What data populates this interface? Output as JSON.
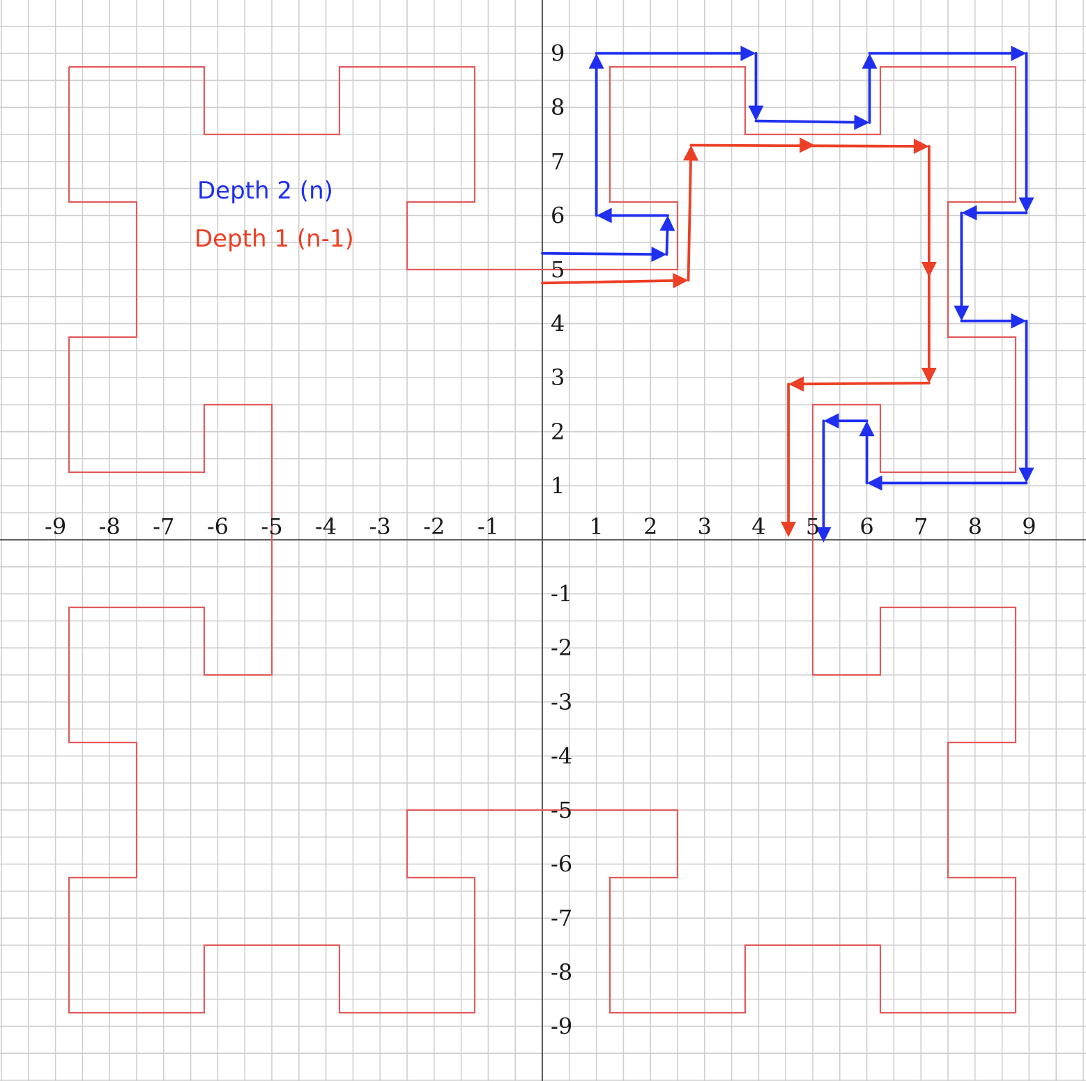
{
  "chart_data": {
    "type": "line",
    "xlim": [
      -10,
      10
    ],
    "ylim": [
      -10,
      10
    ],
    "grid": true,
    "grid_step": 0.5,
    "x_ticks": [
      -9,
      -8,
      -7,
      -6,
      -5,
      -4,
      -3,
      -2,
      -1,
      1,
      2,
      3,
      4,
      5,
      6,
      7,
      8,
      9
    ],
    "y_ticks": [
      9,
      8,
      7,
      6,
      5,
      4,
      3,
      2,
      1,
      -1,
      -2,
      -3,
      -4,
      -5,
      -6,
      -7,
      -8,
      -9
    ],
    "legend": [
      {
        "label": "Depth 2 (n)",
        "color": "#1f2ff0"
      },
      {
        "label": "Depth 1 (n-1)",
        "color": "#ec3f25"
      }
    ],
    "series": [
      {
        "role": "outline",
        "color": "#e15a5a",
        "points": [
          [
            -8.75,
            8.75
          ],
          [
            -6.25,
            8.75
          ],
          [
            -6.25,
            7.5
          ],
          [
            -3.75,
            7.5
          ],
          [
            -3.75,
            8.75
          ],
          [
            -1.25,
            8.75
          ],
          [
            -1.25,
            6.25
          ],
          [
            -2.5,
            6.25
          ],
          [
            -2.5,
            5
          ],
          [
            2.5,
            5
          ],
          [
            2.5,
            6.25
          ],
          [
            1.25,
            6.25
          ],
          [
            1.25,
            8.75
          ],
          [
            3.75,
            8.75
          ],
          [
            3.75,
            7.5
          ],
          [
            6.25,
            7.5
          ],
          [
            6.25,
            8.75
          ],
          [
            8.75,
            8.75
          ],
          [
            8.75,
            6.25
          ],
          [
            7.5,
            6.25
          ],
          [
            7.5,
            3.75
          ],
          [
            8.75,
            3.75
          ],
          [
            8.75,
            1.25
          ],
          [
            6.25,
            1.25
          ],
          [
            6.25,
            2.5
          ],
          [
            5,
            2.5
          ],
          [
            5,
            -2.5
          ],
          [
            6.25,
            -2.5
          ],
          [
            6.25,
            -1.25
          ],
          [
            8.75,
            -1.25
          ],
          [
            8.75,
            -3.75
          ],
          [
            7.5,
            -3.75
          ],
          [
            7.5,
            -6.25
          ],
          [
            8.75,
            -6.25
          ],
          [
            8.75,
            -8.75
          ],
          [
            6.25,
            -8.75
          ],
          [
            6.25,
            -7.5
          ],
          [
            3.75,
            -7.5
          ],
          [
            3.75,
            -8.75
          ],
          [
            1.25,
            -8.75
          ],
          [
            1.25,
            -6.25
          ],
          [
            2.5,
            -6.25
          ],
          [
            2.5,
            -5
          ],
          [
            -2.5,
            -5
          ],
          [
            -2.5,
            -6.25
          ],
          [
            -1.25,
            -6.25
          ],
          [
            -1.25,
            -8.75
          ],
          [
            -3.75,
            -8.75
          ],
          [
            -3.75,
            -7.5
          ],
          [
            -6.25,
            -7.5
          ],
          [
            -6.25,
            -8.75
          ],
          [
            -8.75,
            -8.75
          ],
          [
            -8.75,
            -6.25
          ],
          [
            -7.5,
            -6.25
          ],
          [
            -7.5,
            -3.75
          ],
          [
            -8.75,
            -3.75
          ],
          [
            -8.75,
            -1.25
          ],
          [
            -6.25,
            -1.25
          ],
          [
            -6.25,
            -2.5
          ],
          [
            -5,
            -2.5
          ],
          [
            -5,
            2.5
          ],
          [
            -6.25,
            2.5
          ],
          [
            -6.25,
            1.25
          ],
          [
            -8.75,
            1.25
          ],
          [
            -8.75,
            3.75
          ],
          [
            -7.5,
            3.75
          ],
          [
            -7.5,
            6.25
          ],
          [
            -8.75,
            6.25
          ],
          [
            -8.75,
            8.75
          ]
        ]
      },
      {
        "name": "Depth 1 (n-1)",
        "role": "arrows",
        "color": "#ec3f25",
        "points": [
          [
            0,
            4.75
          ],
          [
            2.7,
            4.8
          ],
          [
            2.75,
            7.3
          ],
          [
            7.15,
            7.28
          ],
          [
            7.15,
            2.9
          ],
          [
            4.55,
            2.88
          ],
          [
            4.55,
            0.05
          ]
        ],
        "mid_arrows": [
          [
            4.9,
            7.3
          ],
          [
            7.15,
            5.0
          ]
        ]
      },
      {
        "name": "Depth 2 (n)",
        "role": "arrows",
        "color": "#1f2ff0",
        "points": [
          [
            0,
            5.3
          ],
          [
            2.3,
            5.28
          ],
          [
            2.32,
            6.0
          ],
          [
            1.0,
            6.0
          ],
          [
            1.0,
            9.0
          ],
          [
            3.95,
            9.0
          ],
          [
            3.95,
            7.75
          ],
          [
            6.05,
            7.72
          ],
          [
            6.05,
            9.0
          ],
          [
            8.95,
            9.0
          ],
          [
            8.95,
            6.05
          ],
          [
            7.75,
            6.05
          ],
          [
            7.75,
            4.05
          ],
          [
            8.95,
            4.05
          ],
          [
            8.95,
            1.05
          ],
          [
            6.0,
            1.05
          ],
          [
            6.0,
            2.2
          ],
          [
            5.2,
            2.2
          ],
          [
            5.2,
            -0.05
          ]
        ],
        "mid_arrows": []
      }
    ]
  }
}
